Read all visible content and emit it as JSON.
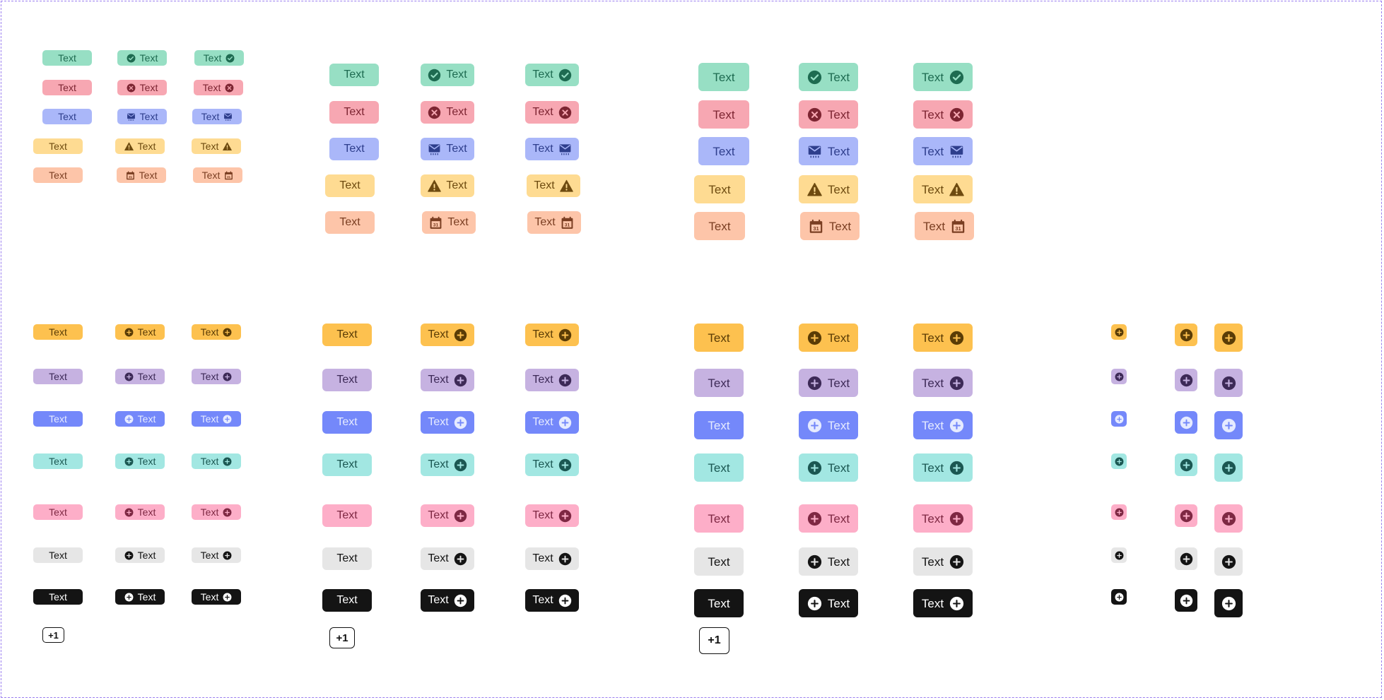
{
  "label": "Text",
  "overflow_label": "+1",
  "status_rows": [
    {
      "variant": "success",
      "icon": "check-circle-icon",
      "bg": "#97dfc4",
      "fg": "#1e6b51"
    },
    {
      "variant": "error",
      "icon": "x-circle-icon",
      "bg": "#f7a7b2",
      "fg": "#7d2532"
    },
    {
      "variant": "info",
      "icon": "mail-icon",
      "bg": "#aab7f9",
      "fg": "#2e3e8c"
    },
    {
      "variant": "warning",
      "icon": "warning-icon",
      "bg": "#fedb92",
      "fg": "#6e4b10"
    },
    {
      "variant": "event",
      "icon": "calendar-icon",
      "bg": "#fdc5a9",
      "fg": "#7a3e22"
    }
  ],
  "color_rows": [
    {
      "variant": "orange",
      "icon": "plus-circle-icon",
      "bg": "#fdc14f",
      "fg": "#5a3c06"
    },
    {
      "variant": "purple",
      "icon": "plus-circle-icon",
      "bg": "#c6b2e1",
      "fg": "#3d2a57"
    },
    {
      "variant": "blue",
      "icon": "plus-circle-icon",
      "bg": "#7488fa",
      "fg": "#e6ebff"
    },
    {
      "variant": "teal",
      "icon": "plus-circle-icon",
      "bg": "#a2e7e2",
      "fg": "#1b5752"
    },
    {
      "variant": "pink",
      "icon": "plus-circle-icon",
      "bg": "#fdaec8",
      "fg": "#7e2843"
    },
    {
      "variant": "gray",
      "icon": "plus-circle-icon",
      "bg": "#e6e6e6",
      "fg": "#141414"
    },
    {
      "variant": "black",
      "icon": "plus-circle-icon",
      "bg": "#141414",
      "fg": "#ffffff"
    }
  ]
}
